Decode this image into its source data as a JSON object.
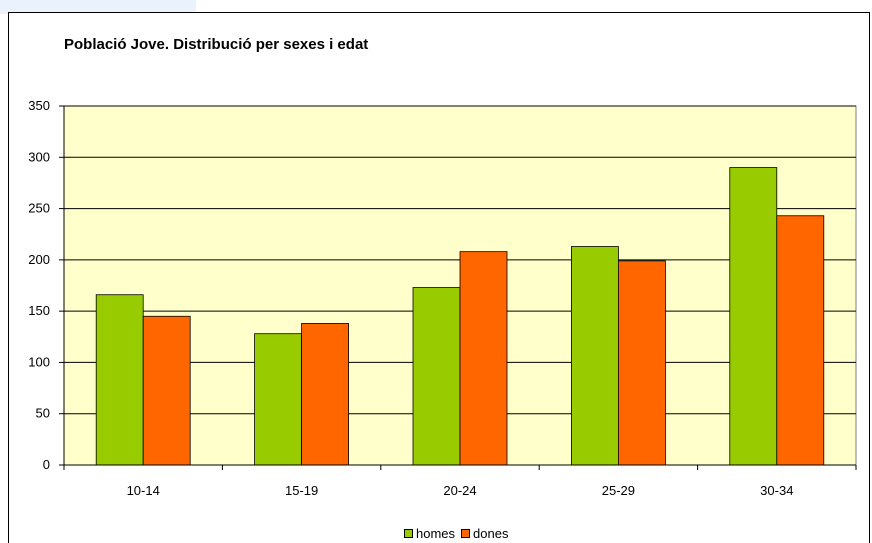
{
  "chart_data": {
    "type": "bar",
    "title": "Població Jove. Distribució per sexes i edat",
    "xlabel": "",
    "ylabel": "",
    "categories": [
      "10-14",
      "15-19",
      "20-24",
      "25-29",
      "30-34"
    ],
    "series": [
      {
        "name": "homes",
        "color": "#99cc00",
        "values": [
          166,
          128,
          173,
          213,
          290
        ]
      },
      {
        "name": "dones",
        "color": "#ff6600",
        "values": [
          145,
          138,
          208,
          199,
          243
        ]
      }
    ],
    "ylim": [
      0,
      350
    ],
    "yticks": [
      "0",
      "50",
      "100",
      "150",
      "200",
      "250",
      "300",
      "350"
    ],
    "grid": true,
    "legend": "bottom",
    "plot_background": "#ffffcc"
  }
}
